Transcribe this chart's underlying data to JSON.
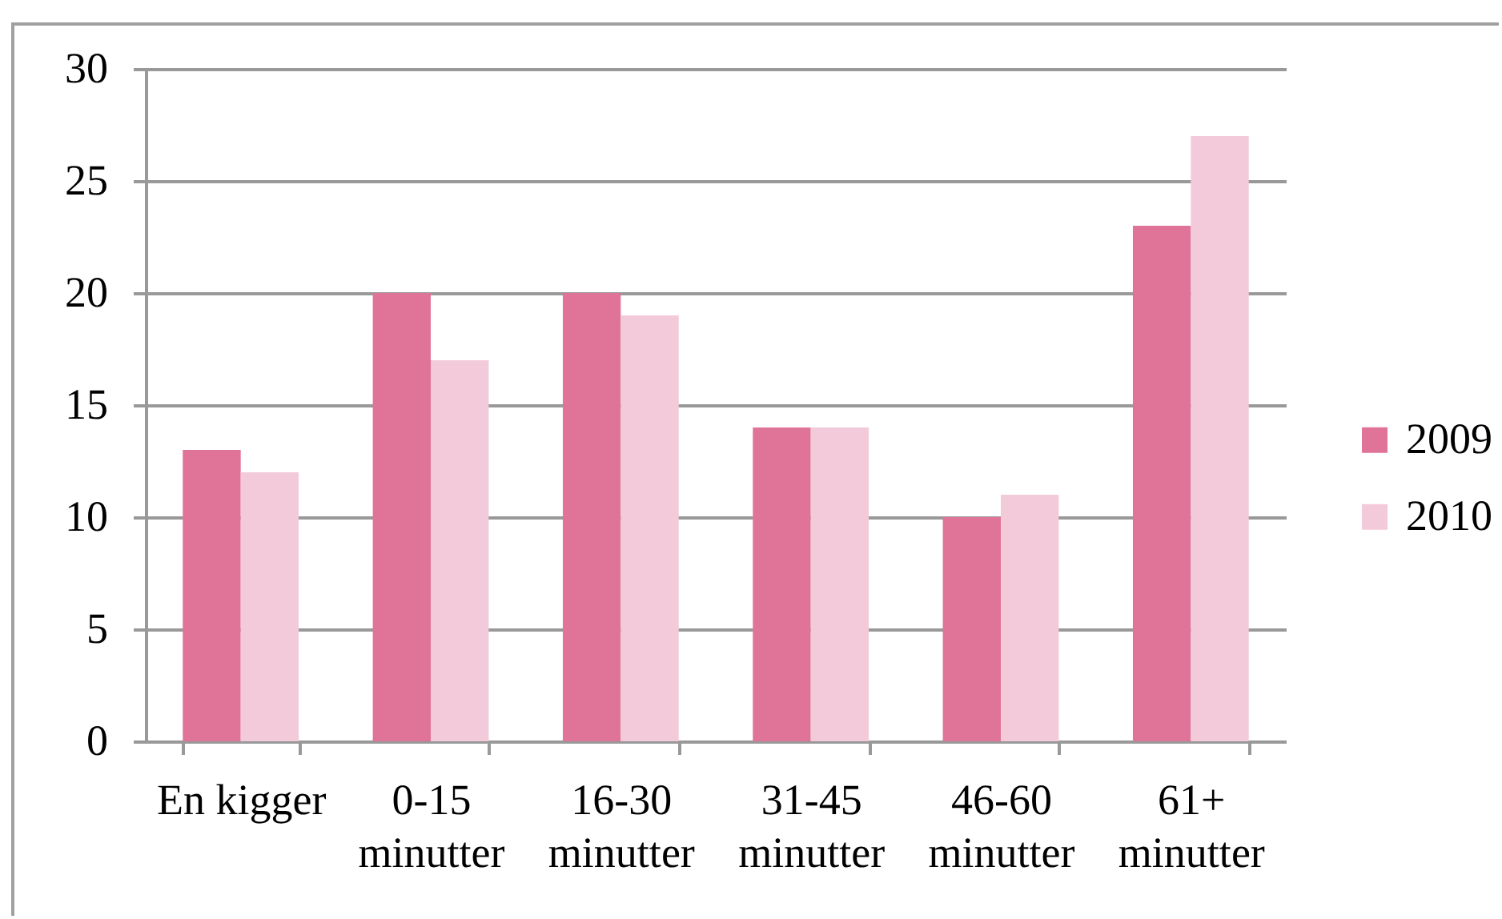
{
  "chart_data": {
    "type": "bar",
    "categories": [
      "En kigger",
      "0-15 minutter",
      "16-30 minutter",
      "31-45 minutter",
      "46-60 minutter",
      "61+ minutter"
    ],
    "series": [
      {
        "name": "2009",
        "color": "#e07398",
        "values": [
          13,
          20,
          20,
          14,
          10,
          23
        ]
      },
      {
        "name": "2010",
        "color": "#f3cad9",
        "values": [
          12,
          17,
          19,
          14,
          11,
          27
        ]
      }
    ],
    "ylim": [
      0,
      30
    ],
    "yticks": [
      0,
      5,
      10,
      15,
      20,
      25,
      30
    ],
    "grid": "y",
    "legend": "right"
  }
}
